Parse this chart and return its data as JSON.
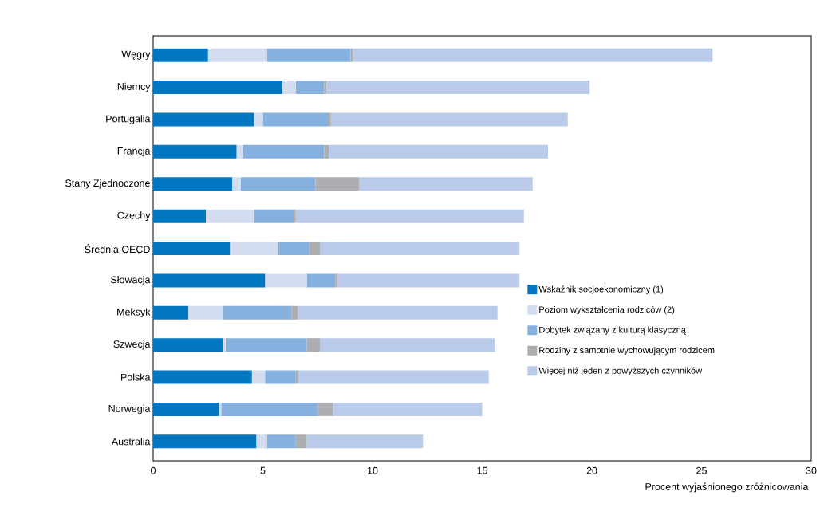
{
  "chart_data": {
    "type": "bar",
    "orientation": "horizontal",
    "stacked": true,
    "xlabel": "Procent wyjaśnionego zróżnicowania",
    "categories": [
      "Węgry",
      "Niemcy",
      "Portugalia",
      "Francja",
      "Stany Zjednoczone",
      "Czechy",
      "Średnia OECD",
      "Słowacja",
      "Meksyk",
      "Szwecja",
      "Polska",
      "Norwegia",
      "Australia"
    ],
    "series": [
      {
        "name": "Wskaźnik socjoekonomiczny (1)",
        "color": "#0077c0",
        "values": [
          2.5,
          5.9,
          4.6,
          3.8,
          3.6,
          2.4,
          3.5,
          5.1,
          1.6,
          3.2,
          4.5,
          3.0,
          4.7
        ]
      },
      {
        "name": "Poziom wykształcenia rodziców (2)",
        "color": "#d3ddef",
        "values": [
          2.7,
          0.6,
          0.4,
          0.3,
          0.4,
          2.2,
          2.2,
          1.9,
          1.6,
          0.1,
          0.6,
          0.1,
          0.5
        ]
      },
      {
        "name": "Dobytek związany z kulturą klasyczną",
        "color": "#86b1de",
        "values": [
          3.8,
          1.3,
          3.0,
          3.7,
          3.4,
          1.8,
          1.4,
          1.3,
          3.1,
          3.7,
          1.4,
          4.4,
          1.3
        ]
      },
      {
        "name": "Rodziny z samotnie wychowującym rodzicem",
        "color": "#adaeb1",
        "values": [
          0.1,
          0.1,
          0.1,
          0.2,
          2.0,
          0.1,
          0.5,
          0.1,
          0.3,
          0.6,
          0.1,
          0.7,
          0.5
        ]
      },
      {
        "name": "Więcej niż jeden z powyższych czynników",
        "color": "#bacbe9",
        "values": [
          16.4,
          12.0,
          10.8,
          10.0,
          7.9,
          10.4,
          9.1,
          8.3,
          9.1,
          8.0,
          8.7,
          6.8,
          5.3
        ]
      }
    ],
    "xlim": [
      0,
      30
    ],
    "xticks": [
      0,
      5,
      10,
      15,
      20,
      25,
      30
    ],
    "grid": false,
    "legend": "bottom right"
  }
}
